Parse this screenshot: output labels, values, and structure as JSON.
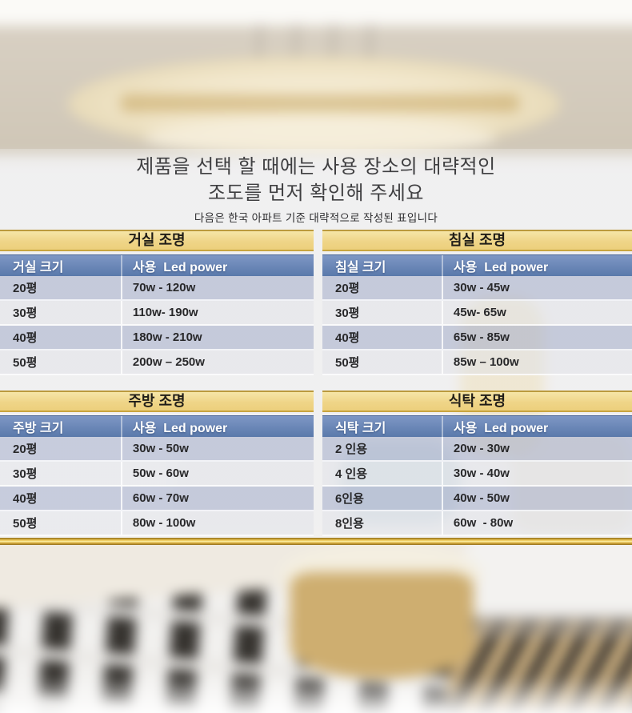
{
  "header": {
    "title_line1": "제품을 선택 할 때에는 사용 장소의 대략적인",
    "title_line2": "조도를 먼저 확인해 주세요",
    "subtitle": "다음은 한국 아파트 기준 대략적으로 작성된 표입니다"
  },
  "colors": {
    "table_title_gold": "#eed384",
    "table_header_blue": "#6282b3",
    "divider_gold": "#d9ae3a"
  },
  "tables": [
    {
      "title": "거실 조명",
      "size_header": "거실 크기",
      "power_header": "사용  Led power",
      "rows": [
        {
          "size": "20평",
          "power": "70w - 120w"
        },
        {
          "size": "30평",
          "power": "110w- 190w"
        },
        {
          "size": "40평",
          "power": "180w - 210w"
        },
        {
          "size": "50평",
          "power": "200w – 250w"
        }
      ]
    },
    {
      "title": "침실 조명",
      "size_header": "침실 크기",
      "power_header": "사용  Led power",
      "rows": [
        {
          "size": "20평",
          "power": "30w - 45w"
        },
        {
          "size": "30평",
          "power": "45w- 65w"
        },
        {
          "size": "40평",
          "power": "65w - 85w"
        },
        {
          "size": "50평",
          "power": "85w – 100w"
        }
      ]
    },
    {
      "title": "주방 조명",
      "size_header": "주방 크기",
      "power_header": "사용  Led power",
      "rows": [
        {
          "size": "20평",
          "power": "30w - 50w"
        },
        {
          "size": "30평",
          "power": "50w - 60w"
        },
        {
          "size": "40평",
          "power": "60w - 70w"
        },
        {
          "size": "50평",
          "power": "80w - 100w"
        }
      ]
    },
    {
      "title": "식탁 조명",
      "size_header": "식탁 크기",
      "power_header": "사용  Led power",
      "rows": [
        {
          "size": "2 인용",
          "power": "20w - 30w"
        },
        {
          "size": "4 인용",
          "power": "30w - 40w"
        },
        {
          "size": "6인용",
          "power": "40w - 50w"
        },
        {
          "size": "8인용",
          "power": "60w  - 80w"
        }
      ]
    }
  ]
}
